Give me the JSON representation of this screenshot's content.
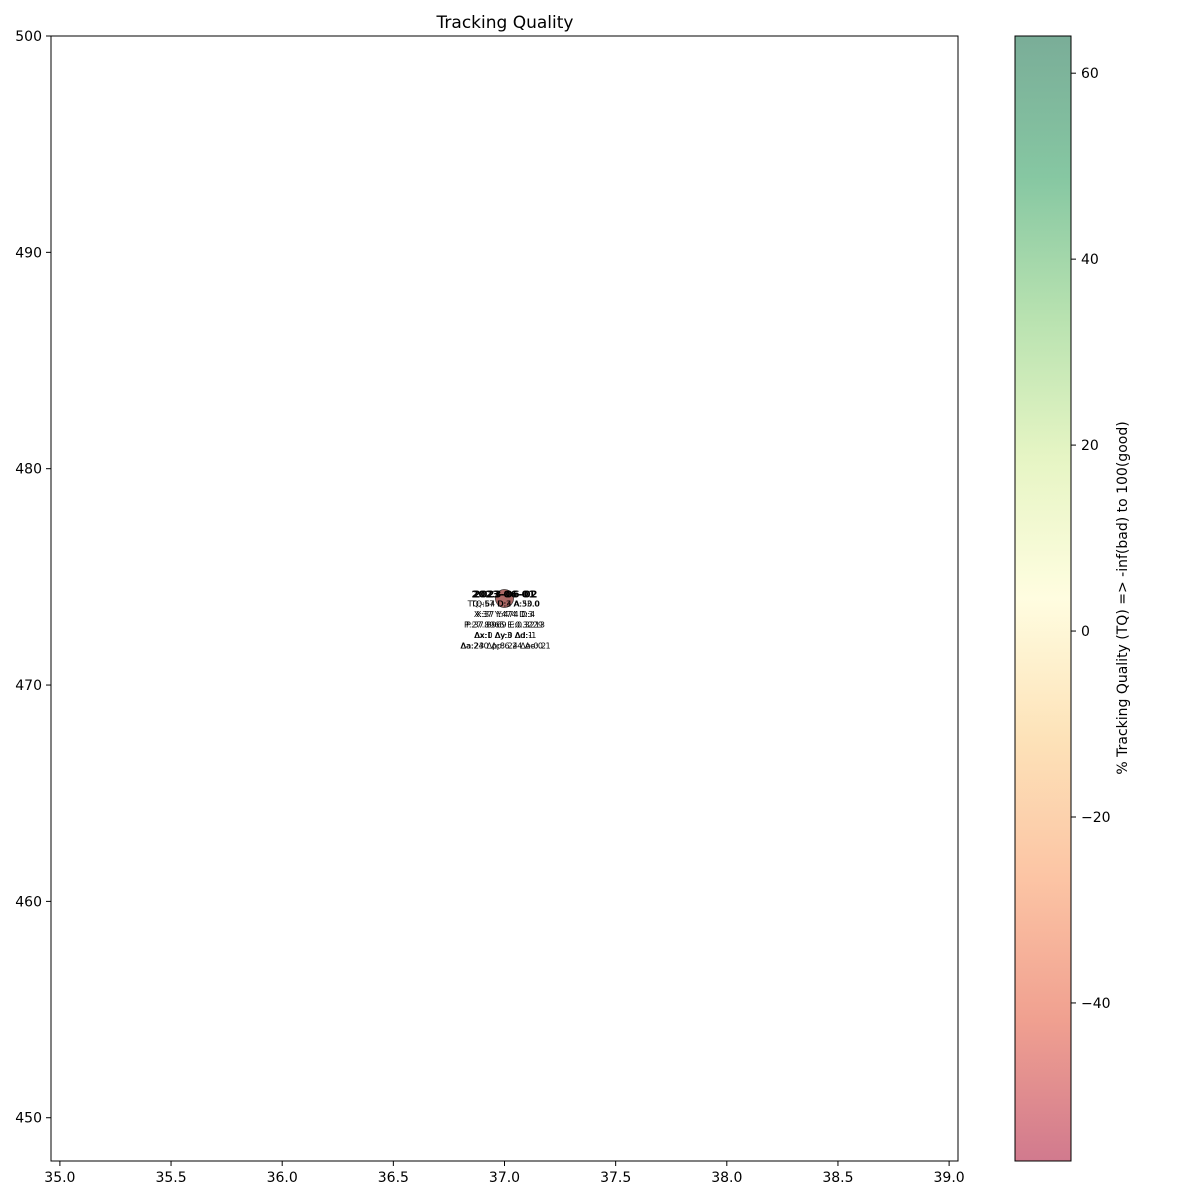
{
  "chart_data": {
    "type": "scatter",
    "title": "Tracking Quality",
    "xlabel": "",
    "ylabel": "",
    "xlim": [
      34.96,
      39.04
    ],
    "ylim": [
      448,
      500
    ],
    "xticks": [
      "35.0",
      "35.5",
      "36.0",
      "36.5",
      "37.0",
      "37.5",
      "38.0",
      "38.5",
      "39.0"
    ],
    "xtick_values": [
      35.0,
      35.5,
      36.0,
      36.5,
      37.0,
      37.5,
      38.0,
      38.5,
      39.0
    ],
    "yticks": [
      "450",
      "460",
      "470",
      "480",
      "490",
      "500"
    ],
    "ytick_values": [
      450,
      460,
      470,
      480,
      490,
      500
    ],
    "grid": false,
    "colorbar": {
      "label": "% Tracking Quality (TQ) =>  -inf(bad) to 100(good)",
      "range": [
        -57,
        64
      ],
      "ticks": [
        "−40",
        "−20",
        "0",
        "20",
        "40",
        "60"
      ],
      "tick_values": [
        -40,
        -20,
        0,
        20,
        40,
        60
      ],
      "colors": [
        "#d17a8e",
        "#f0a090",
        "#fcc4a4",
        "#fde2b8",
        "#fffde0",
        "#e6f5c4",
        "#b8e2b0",
        "#86c7a2",
        "#7aad98"
      ]
    },
    "points": [
      {
        "x": 37.0,
        "y": 474,
        "tq": 64,
        "color": "#7aad98",
        "date": "2023-06-02",
        "lines": [
          "TQ:64 D:4 A:50.0",
          "X:37 Y:474 D:4",
          "P:37.8969 E:0.3213",
          "Δx:0 Δy:0 Δd:-1",
          "Δa:240 Δp:6.24 Δe:0.1"
        ]
      },
      {
        "x": 37.0,
        "y": 474,
        "tq": -57,
        "color": "#b25a5a",
        "date": "2023-06-01",
        "lines": [
          "TQ:-57 D:3 A:33.0",
          "X:37 Y:474 D:3",
          "P:27.8965 E:0.3229",
          "Δx:1 Δy:3 Δd:1",
          "Δa:23 Δp:8.24 Δe:0.2"
        ]
      }
    ]
  }
}
